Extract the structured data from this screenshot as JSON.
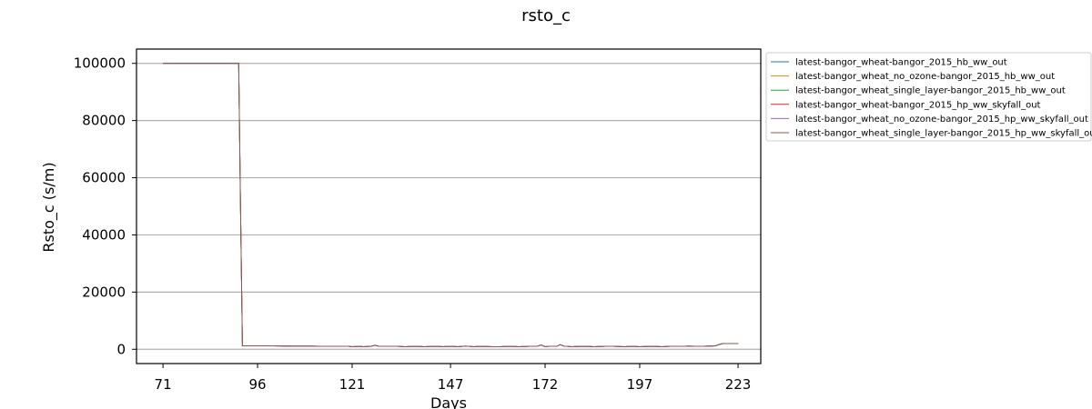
{
  "chart_data": {
    "type": "line",
    "title": "rsto_c",
    "xlabel": "Days",
    "ylabel": "Rsto_c (s/m)",
    "xlim": [
      64,
      229
    ],
    "ylim": [
      -5000,
      105000
    ],
    "x_ticks": [
      71,
      96,
      121,
      147,
      172,
      197,
      223
    ],
    "y_ticks": [
      0,
      20000,
      40000,
      60000,
      80000,
      100000
    ],
    "grid": "y-major",
    "legend_position": "outside-right",
    "series": [
      {
        "name": "latest-bangor_wheat-bangor_2015_hb_ww_out",
        "color": "#1f77b4"
      },
      {
        "name": "latest-bangor_wheat_no_ozone-bangor_2015_hb_ww_out",
        "color": "#ff7f0e"
      },
      {
        "name": "latest-bangor_wheat_single_layer-bangor_2015_hb_ww_out",
        "color": "#2ca02c"
      },
      {
        "name": "latest-bangor_wheat-bangor_2015_hp_ww_skyfall_out",
        "color": "#d62728"
      },
      {
        "name": "latest-bangor_wheat_no_ozone-bangor_2015_hp_ww_skyfall_out",
        "color": "#9467bd"
      },
      {
        "name": "latest-bangor_wheat_single_layer-bangor_2015_hp_ww_skyfall_out",
        "color": "#8c564b"
      }
    ],
    "shared_data": {
      "x": [
        71,
        91,
        91.5,
        92,
        100,
        105,
        110,
        115,
        120,
        121,
        123,
        124,
        126,
        127,
        128,
        130,
        133,
        135,
        138,
        140,
        143,
        145,
        147,
        149,
        151,
        153,
        155,
        158,
        160,
        163,
        165,
        168,
        170,
        171,
        172,
        173,
        175,
        176,
        177,
        179,
        182,
        185,
        188,
        190,
        193,
        195,
        197,
        200,
        203,
        205,
        208,
        210,
        213,
        215,
        217,
        218,
        219,
        223
      ],
      "y": [
        100000,
        100000,
        50000,
        1200,
        1200,
        1100,
        1100,
        1000,
        1000,
        900,
        1000,
        900,
        1000,
        1400,
        1100,
        1000,
        1000,
        900,
        1000,
        900,
        1000,
        900,
        1000,
        900,
        1100,
        900,
        1000,
        900,
        900,
        1000,
        900,
        1000,
        1100,
        1500,
        900,
        1000,
        1000,
        1600,
        1100,
        900,
        1000,
        900,
        1000,
        1000,
        900,
        1000,
        900,
        1000,
        900,
        1000,
        1000,
        1100,
        1000,
        1100,
        1200,
        1700,
        2000,
        2000
      ]
    }
  }
}
